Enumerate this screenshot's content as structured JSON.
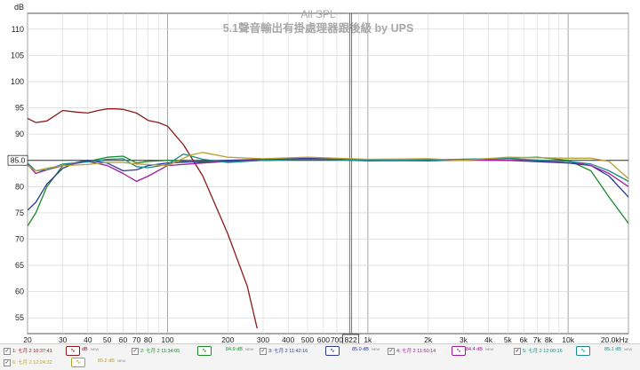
{
  "chart_data": {
    "type": "line",
    "title": "All SPL",
    "subtitle": "5.1聲音輸出有掛處理器跟後級 by UPS",
    "ylabel": "dB",
    "xlabel": "",
    "x_scale": "log",
    "xlim": [
      20,
      20000
    ],
    "ylim": [
      52,
      113
    ],
    "grid": true,
    "y_ticks": [
      55,
      60,
      65,
      70,
      75,
      80,
      85,
      90,
      95,
      100,
      105,
      110
    ],
    "x_ticks": [
      {
        "v": 20,
        "l": "20"
      },
      {
        "v": 30,
        "l": "30"
      },
      {
        "v": 40,
        "l": "40"
      },
      {
        "v": 50,
        "l": "50"
      },
      {
        "v": 60,
        "l": "60"
      },
      {
        "v": 70,
        "l": "70"
      },
      {
        "v": 80,
        "l": "80"
      },
      {
        "v": 100,
        "l": "100"
      },
      {
        "v": 200,
        "l": "200"
      },
      {
        "v": 300,
        "l": "300"
      },
      {
        "v": 400,
        "l": "400"
      },
      {
        "v": 500,
        "l": "500"
      },
      {
        "v": 600,
        "l": "600"
      },
      {
        "v": 700,
        "l": "700"
      },
      {
        "v": 1000,
        "l": "1k"
      },
      {
        "v": 2000,
        "l": "2k"
      },
      {
        "v": 3000,
        "l": "3k"
      },
      {
        "v": 4000,
        "l": "4k"
      },
      {
        "v": 5000,
        "l": "5k"
      },
      {
        "v": 6000,
        "l": "6k"
      },
      {
        "v": 7000,
        "l": "7k"
      },
      {
        "v": 8000,
        "l": "8k"
      },
      {
        "v": 10000,
        "l": "10k"
      },
      {
        "v": 20000,
        "l": "20.0kHz"
      }
    ],
    "reference_level": {
      "value": 85.0,
      "label": "85.0"
    },
    "cursor": {
      "x": 822,
      "label": "822"
    },
    "series": [
      {
        "name": "1: 七月 2 10:37:41",
        "color": "#8b1a1a",
        "x": [
          20,
          22,
          25,
          30,
          35,
          40,
          45,
          50,
          55,
          60,
          70,
          80,
          90,
          100,
          120,
          150,
          200,
          250,
          280
        ],
        "y": [
          93.0,
          92.2,
          92.5,
          94.5,
          94.2,
          94.0,
          94.5,
          94.8,
          94.8,
          94.7,
          94.0,
          92.6,
          92.2,
          91.5,
          88.0,
          82.0,
          71.0,
          61.0,
          53.0
        ]
      },
      {
        "name": "2: 七月 2 11:34:05",
        "color": "#1a8a2a",
        "x": [
          20,
          22,
          25,
          30,
          40,
          50,
          60,
          70,
          80,
          100,
          150,
          200,
          300,
          500,
          1000,
          2000,
          3000,
          5000,
          7000,
          10000,
          13000,
          16000,
          20000
        ],
        "y": [
          72.5,
          75.0,
          80.0,
          84.0,
          84.8,
          85.6,
          85.8,
          84.5,
          84.8,
          85.0,
          84.6,
          84.8,
          85.0,
          85.3,
          84.9,
          85.0,
          85.2,
          85.4,
          85.6,
          85.0,
          83.0,
          78.0,
          73.0
        ]
      },
      {
        "name": "3: 七月 2 11:42:16",
        "color": "#2a3a9a",
        "x": [
          20,
          22,
          25,
          30,
          35,
          40,
          50,
          60,
          70,
          80,
          100,
          150,
          200,
          300,
          500,
          1000,
          2000,
          3000,
          5000,
          10000,
          13000,
          16000,
          20000
        ],
        "y": [
          75.5,
          77.0,
          80.5,
          83.5,
          84.6,
          85.0,
          84.5,
          83.0,
          83.2,
          84.0,
          84.5,
          84.8,
          85.0,
          85.2,
          85.4,
          85.0,
          85.1,
          85.2,
          85.0,
          84.5,
          84.0,
          82.0,
          78.0
        ]
      },
      {
        "name": "4: 七月 2 11:50:14",
        "color": "#a01aa0",
        "x": [
          20,
          22,
          25,
          30,
          40,
          50,
          60,
          70,
          80,
          100,
          150,
          200,
          300,
          500,
          1000,
          2000,
          3000,
          5000,
          10000,
          13000,
          16000,
          20000
        ],
        "y": [
          84.2,
          82.5,
          83.2,
          84.0,
          84.8,
          84.0,
          82.5,
          81.0,
          82.0,
          84.0,
          84.5,
          84.8,
          85.0,
          85.2,
          85.0,
          84.9,
          85.1,
          85.0,
          84.8,
          84.0,
          82.5,
          80.0
        ]
      },
      {
        "name": "5: 七月 2 12:00:16",
        "color": "#1a8a8a",
        "x": [
          20,
          22,
          25,
          30,
          40,
          50,
          60,
          70,
          80,
          100,
          120,
          150,
          200,
          300,
          500,
          1000,
          2000,
          3000,
          5000,
          10000,
          13000,
          16000,
          20000
        ],
        "y": [
          84.5,
          83.0,
          83.2,
          84.3,
          84.7,
          85.2,
          85.3,
          83.8,
          83.6,
          84.2,
          86.2,
          85.2,
          84.6,
          85.0,
          85.2,
          85.0,
          85.0,
          85.2,
          85.3,
          84.8,
          84.3,
          83.0,
          81.0
        ]
      },
      {
        "name": "6: 七月 2 12:24:32",
        "color": "#b8a030",
        "x": [
          20,
          22,
          25,
          30,
          40,
          50,
          60,
          70,
          80,
          100,
          130,
          150,
          200,
          300,
          500,
          1000,
          2000,
          3000,
          5000,
          10000,
          13000,
          16000,
          20000
        ],
        "y": [
          84.0,
          83.0,
          83.5,
          84.0,
          84.2,
          84.6,
          84.6,
          84.3,
          84.2,
          84.0,
          86.0,
          86.5,
          85.6,
          85.3,
          85.6,
          85.2,
          85.3,
          85.0,
          85.6,
          85.4,
          85.4,
          84.8,
          81.5
        ]
      }
    ]
  },
  "legend": [
    {
      "label": "1: 七月 2 10:37:41",
      "value": "dB",
      "sub": "NEW"
    },
    {
      "label": "2: 七月 2 11:34:05",
      "value": "84.9 dB",
      "sub": "NEW"
    },
    {
      "label": "3: 七月 2 11:42:16",
      "value": "85.0 dB",
      "sub": "NEW"
    },
    {
      "label": "4: 七月 2 11:50:14",
      "value": "84.4 dB",
      "sub": "NEW"
    },
    {
      "label": "5: 七月 2 12:00:16",
      "value": "85.1 dB",
      "sub": "NEW"
    },
    {
      "label": "6: 七月 2 12:24:32",
      "value": "85.2 dB",
      "sub": "NEW"
    }
  ],
  "colors": {
    "grid_major": "#a0a0a0",
    "grid_minor": "#d8d8d8",
    "axis_text": "#222222",
    "title_text": "#a8a8a8"
  }
}
